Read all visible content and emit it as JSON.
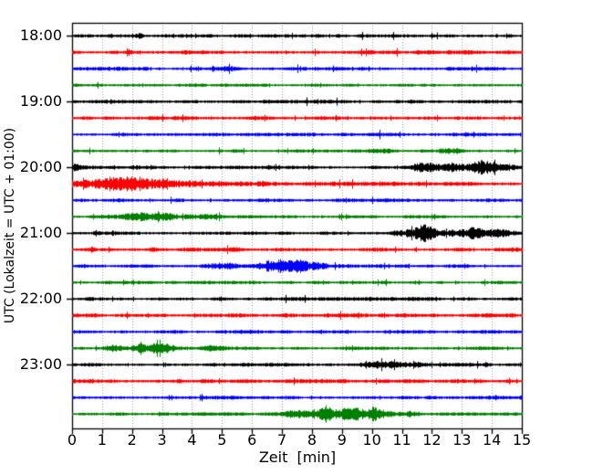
{
  "chart_data": {
    "type": "line",
    "subtype": "seismogram-drum-plot",
    "title": "",
    "xlabel": "Zeit  [min]",
    "ylabel": "UTC (Lokalzeit = UTC + 01:00)",
    "xlim": [
      0,
      15
    ],
    "x_ticks": [
      "0",
      "1",
      "2",
      "3",
      "4",
      "5",
      "6",
      "7",
      "8",
      "9",
      "10",
      "11",
      "12",
      "13",
      "14",
      "15"
    ],
    "hour_labels": [
      "18:00",
      "19:00",
      "20:00",
      "21:00",
      "22:00",
      "23:00"
    ],
    "rows_per_hour": 4,
    "minutes_per_row": 15,
    "grid": {
      "vertical_dotted": true,
      "color": "#999999"
    },
    "frame_color": "#000000",
    "trace_color_cycle": [
      "#000000",
      "#ff0000",
      "#0000ff",
      "#008000"
    ],
    "traces": [
      {
        "start_utc": "18:00",
        "color": "#000000",
        "base_amp": 1.5,
        "events": [
          {
            "t": 2.25,
            "w": 0.07,
            "a": 2.8
          }
        ]
      },
      {
        "start_utc": "18:15",
        "color": "#ff0000",
        "base_amp": 1.8,
        "events": []
      },
      {
        "start_utc": "18:30",
        "color": "#0000ff",
        "base_amp": 1.6,
        "events": [
          {
            "t": 5.2,
            "w": 0.22,
            "a": 2.6
          }
        ]
      },
      {
        "start_utc": "18:45",
        "color": "#008000",
        "base_amp": 1.5,
        "events": []
      },
      {
        "start_utc": "19:00",
        "color": "#000000",
        "base_amp": 1.6,
        "events": []
      },
      {
        "start_utc": "19:15",
        "color": "#ff0000",
        "base_amp": 1.8,
        "events": []
      },
      {
        "start_utc": "19:30",
        "color": "#0000ff",
        "base_amp": 1.6,
        "events": [
          {
            "t": 13.5,
            "w": 0.3,
            "a": 1.1
          }
        ]
      },
      {
        "start_utc": "19:45",
        "color": "#008000",
        "base_amp": 1.5,
        "events": [
          {
            "t": 10.2,
            "w": 0.5,
            "a": 1.0
          },
          {
            "t": 12.6,
            "w": 0.4,
            "a": 1.2
          }
        ]
      },
      {
        "start_utc": "20:00",
        "color": "#000000",
        "base_amp": 1.6,
        "events": [
          {
            "t": 0.15,
            "w": 0.1,
            "a": 3.2
          },
          {
            "t": 2.1,
            "w": 0.08,
            "a": 1.6
          },
          {
            "t": 11.8,
            "w": 0.3,
            "a": 3.2
          },
          {
            "t": 12.7,
            "w": 0.25,
            "a": 2.4
          },
          {
            "t": 13.5,
            "w": 0.25,
            "a": 6.2
          },
          {
            "t": 14.0,
            "w": 0.2,
            "a": 5.6
          },
          {
            "t": 14.5,
            "w": 0.3,
            "a": 2.2
          }
        ]
      },
      {
        "start_utc": "20:15",
        "color": "#ff0000",
        "base_amp": 1.8,
        "events": [
          {
            "t": 0.7,
            "w": 0.7,
            "a": 3.4
          },
          {
            "t": 2.1,
            "w": 0.7,
            "a": 3.4
          },
          {
            "t": 3.4,
            "w": 0.9,
            "a": 2.2
          },
          {
            "t": 5.5,
            "w": 1.4,
            "a": 1.2
          }
        ]
      },
      {
        "start_utc": "20:30",
        "color": "#0000ff",
        "base_amp": 1.6,
        "events": []
      },
      {
        "start_utc": "20:45",
        "color": "#008000",
        "base_amp": 1.5,
        "events": [
          {
            "t": 2.0,
            "w": 0.5,
            "a": 1.7
          },
          {
            "t": 3.0,
            "w": 0.6,
            "a": 1.7
          },
          {
            "t": 4.3,
            "w": 0.35,
            "a": 1.1
          }
        ]
      },
      {
        "start_utc": "21:00",
        "color": "#000000",
        "base_amp": 1.6,
        "events": [
          {
            "t": 0.8,
            "w": 0.06,
            "a": 1.8
          },
          {
            "t": 11.0,
            "w": 0.25,
            "a": 2.2
          },
          {
            "t": 11.65,
            "w": 0.28,
            "a": 5.8
          },
          {
            "t": 12.4,
            "w": 0.4,
            "a": 2.6
          },
          {
            "t": 13.35,
            "w": 0.4,
            "a": 3.2
          },
          {
            "t": 14.2,
            "w": 0.4,
            "a": 1.8
          }
        ]
      },
      {
        "start_utc": "21:15",
        "color": "#ff0000",
        "base_amp": 1.8,
        "events": [
          {
            "t": 0.65,
            "w": 0.07,
            "a": 1.6
          },
          {
            "t": 5.5,
            "w": 0.12,
            "a": 1.6
          }
        ]
      },
      {
        "start_utc": "21:30",
        "color": "#0000ff",
        "base_amp": 1.6,
        "events": [
          {
            "t": 5.0,
            "w": 0.5,
            "a": 1.3
          },
          {
            "t": 6.7,
            "w": 0.5,
            "a": 4.3
          },
          {
            "t": 7.55,
            "w": 0.35,
            "a": 3.8
          },
          {
            "t": 8.3,
            "w": 0.3,
            "a": 1.7
          }
        ]
      },
      {
        "start_utc": "21:45",
        "color": "#008000",
        "base_amp": 1.5,
        "events": []
      },
      {
        "start_utc": "22:00",
        "color": "#000000",
        "base_amp": 1.6,
        "events": []
      },
      {
        "start_utc": "22:15",
        "color": "#ff0000",
        "base_amp": 1.8,
        "events": []
      },
      {
        "start_utc": "22:30",
        "color": "#0000ff",
        "base_amp": 1.6,
        "events": []
      },
      {
        "start_utc": "22:45",
        "color": "#008000",
        "base_amp": 1.5,
        "events": [
          {
            "t": 1.4,
            "w": 0.3,
            "a": 1.9
          },
          {
            "t": 2.5,
            "w": 0.4,
            "a": 2.9
          },
          {
            "t": 3.2,
            "w": 0.35,
            "a": 2.0
          },
          {
            "t": 4.6,
            "w": 0.3,
            "a": 2.1
          }
        ]
      },
      {
        "start_utc": "23:00",
        "color": "#000000",
        "base_amp": 1.6,
        "events": [
          {
            "t": 10.0,
            "w": 0.35,
            "a": 2.8
          },
          {
            "t": 10.65,
            "w": 0.3,
            "a": 3.0
          },
          {
            "t": 11.4,
            "w": 0.35,
            "a": 2.2
          },
          {
            "t": 13.8,
            "w": 0.12,
            "a": 1.4
          }
        ]
      },
      {
        "start_utc": "23:15",
        "color": "#ff0000",
        "base_amp": 1.8,
        "events": []
      },
      {
        "start_utc": "23:30",
        "color": "#0000ff",
        "base_amp": 1.6,
        "events": []
      },
      {
        "start_utc": "23:45",
        "color": "#008000",
        "base_amp": 1.5,
        "events": [
          {
            "t": 7.5,
            "w": 0.4,
            "a": 2.3
          },
          {
            "t": 8.35,
            "w": 0.4,
            "a": 4.3
          },
          {
            "t": 9.0,
            "w": 0.3,
            "a": 2.8
          },
          {
            "t": 9.7,
            "w": 0.4,
            "a": 4.8
          },
          {
            "t": 10.45,
            "w": 0.4,
            "a": 2.2
          },
          {
            "t": 11.2,
            "w": 0.4,
            "a": 1.0
          }
        ]
      }
    ]
  }
}
